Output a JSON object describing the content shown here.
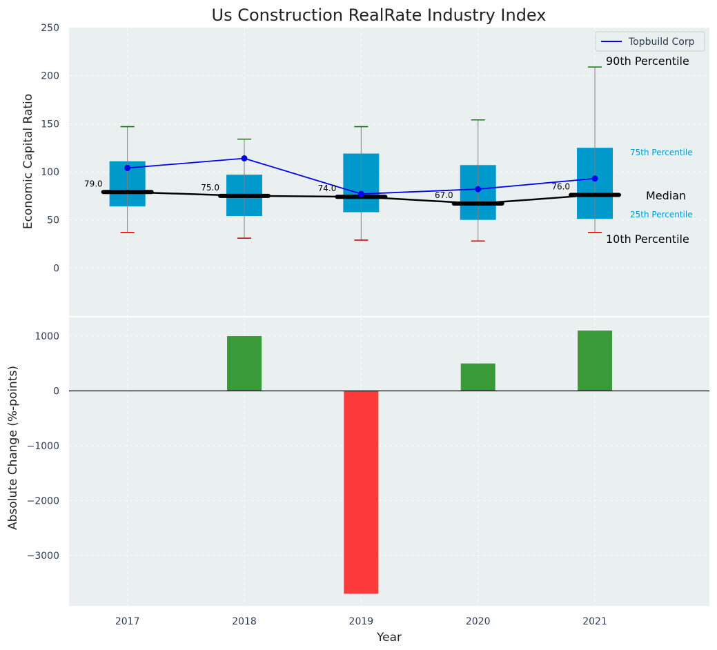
{
  "chart_data": [
    {
      "type": "box",
      "title": "Us Construction RealRate Industry Index",
      "ylabel": "Economic Capital Ratio",
      "xlabel": "",
      "ylim": [
        -50,
        250
      ],
      "yticks": [
        0,
        50,
        100,
        150,
        200,
        250
      ],
      "categories": [
        "2017",
        "2018",
        "2019",
        "2020",
        "2021"
      ],
      "p10": [
        37,
        31,
        29,
        28,
        37
      ],
      "p25": [
        64,
        54,
        58,
        50,
        51
      ],
      "median": [
        79,
        75,
        74,
        67,
        76
      ],
      "median_labels": [
        "79.0",
        "75.0",
        "74.0",
        "67.0",
        "76.0"
      ],
      "p75": [
        111,
        97,
        119,
        107,
        125
      ],
      "p90": [
        147,
        134,
        147,
        154,
        209
      ],
      "series": [
        {
          "name": "Topbuild Corp",
          "values": [
            104,
            114,
            77,
            82,
            93
          ],
          "color": "#0000ee"
        }
      ],
      "legend": {
        "position": "top-right",
        "entries": [
          "Topbuild Corp"
        ]
      },
      "annotations": {
        "p90": "90th Percentile",
        "p75": "75th Percentile",
        "median": "Median",
        "p25": "25th Percentile",
        "p10": "10th Percentile"
      },
      "colors": {
        "box": "#0099cc",
        "median": "#000000",
        "whisker": "#808080",
        "p90_cap": "#008000",
        "p10_cap": "#dd0000",
        "background": "#eaeff0"
      }
    },
    {
      "type": "bar",
      "title": "",
      "ylabel": "Absolute Change (%-points)",
      "xlabel": "Year",
      "ylim": [
        -3920,
        1340
      ],
      "yticks": [
        -3000,
        -2000,
        -1000,
        0,
        1000
      ],
      "categories": [
        "2017",
        "2018",
        "2019",
        "2020",
        "2021"
      ],
      "values": [
        0,
        1000,
        -3700,
        500,
        1100
      ],
      "colors": {
        "positive": "#3a9a3a",
        "negative": "#fc3a3a"
      }
    }
  ]
}
